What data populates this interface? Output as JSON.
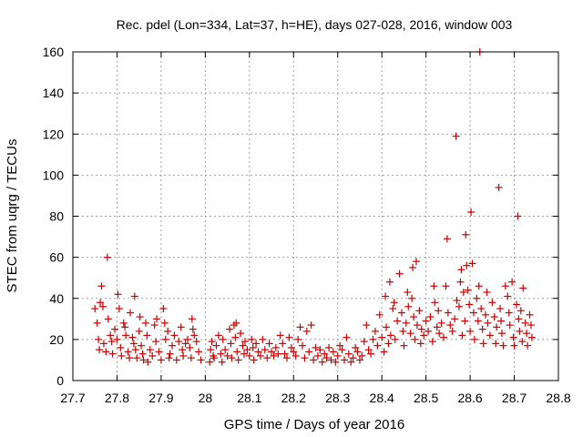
{
  "chart_data": {
    "type": "scatter",
    "title": "Rec. pdel (Lon=334, Lat=37, h=HE), days 027-028, 2016, window 003",
    "xlabel": "GPS time / Days of year 2016",
    "ylabel": "STEC from uqrg / TECUs",
    "xlim": [
      27.7,
      28.8
    ],
    "ylim": [
      0,
      160
    ],
    "xticks": [
      27.7,
      27.8,
      27.9,
      28.0,
      28.1,
      28.2,
      28.3,
      28.4,
      28.5,
      28.6,
      28.7,
      28.8
    ],
    "xtick_labels": [
      "27.7",
      "27.8",
      "27.9",
      "28",
      "28.1",
      "28.2",
      "28.3",
      "28.4",
      "28.5",
      "28.6",
      "28.7",
      "28.8"
    ],
    "yticks": [
      0,
      20,
      40,
      60,
      80,
      100,
      120,
      140,
      160
    ],
    "ytick_labels": [
      "0",
      "20",
      "40",
      "60",
      "80",
      "100",
      "120",
      "140",
      "160"
    ],
    "grid": true,
    "marker": "plus",
    "color": "#cc0000",
    "series": [
      {
        "name": "STEC",
        "points": [
          [
            27.75,
            35
          ],
          [
            27.755,
            28
          ],
          [
            27.758,
            20
          ],
          [
            27.76,
            15
          ],
          [
            27.762,
            38
          ],
          [
            27.765,
            46
          ],
          [
            27.768,
            36
          ],
          [
            27.77,
            18
          ],
          [
            27.775,
            14
          ],
          [
            27.778,
            60
          ],
          [
            27.78,
            30
          ],
          [
            27.785,
            22
          ],
          [
            27.788,
            19
          ],
          [
            27.79,
            13
          ],
          [
            27.795,
            25
          ],
          [
            27.8,
            20
          ],
          [
            27.802,
            42
          ],
          [
            27.805,
            35
          ],
          [
            27.808,
            16
          ],
          [
            27.81,
            12
          ],
          [
            27.815,
            28
          ],
          [
            27.818,
            26
          ],
          [
            27.82,
            22
          ],
          [
            27.825,
            14
          ],
          [
            27.828,
            11
          ],
          [
            27.83,
            33
          ],
          [
            27.835,
            21
          ],
          [
            27.838,
            18
          ],
          [
            27.84,
            41
          ],
          [
            27.842,
            15
          ],
          [
            27.845,
            11
          ],
          [
            27.85,
            24
          ],
          [
            27.852,
            31
          ],
          [
            27.855,
            17
          ],
          [
            27.858,
            13
          ],
          [
            27.86,
            10
          ],
          [
            27.865,
            28
          ],
          [
            27.868,
            22
          ],
          [
            27.87,
            9
          ],
          [
            27.875,
            15
          ],
          [
            27.88,
            12
          ],
          [
            27.885,
            27
          ],
          [
            27.888,
            19
          ],
          [
            27.89,
            30
          ],
          [
            27.895,
            14
          ],
          [
            27.9,
            10
          ],
          [
            27.905,
            35
          ],
          [
            27.908,
            28
          ],
          [
            27.91,
            20
          ],
          [
            27.915,
            24
          ],
          [
            27.918,
            11
          ],
          [
            27.92,
            13
          ],
          [
            27.925,
            17
          ],
          [
            27.93,
            22
          ],
          [
            27.935,
            10
          ],
          [
            27.94,
            19
          ],
          [
            27.945,
            26
          ],
          [
            27.948,
            15
          ],
          [
            27.95,
            12
          ],
          [
            27.955,
            18
          ],
          [
            27.96,
            20
          ],
          [
            27.965,
            16
          ],
          [
            27.968,
            11
          ],
          [
            27.97,
            30
          ],
          [
            27.972,
            25
          ],
          [
            27.975,
            22
          ],
          [
            27.98,
            19
          ],
          [
            27.985,
            14
          ],
          [
            27.99,
            10
          ],
          [
            28.01,
            9
          ],
          [
            28.012,
            15
          ],
          [
            28.015,
            19
          ],
          [
            28.018,
            12
          ],
          [
            28.02,
            11
          ],
          [
            28.025,
            17
          ],
          [
            28.03,
            22
          ],
          [
            28.035,
            13
          ],
          [
            28.038,
            9
          ],
          [
            28.04,
            20
          ],
          [
            28.045,
            15
          ],
          [
            28.05,
            12
          ],
          [
            28.055,
            25
          ],
          [
            28.058,
            18
          ],
          [
            28.06,
            11
          ],
          [
            28.065,
            27
          ],
          [
            28.068,
            21
          ],
          [
            28.07,
            28
          ],
          [
            28.072,
            14
          ],
          [
            28.075,
            10
          ],
          [
            28.08,
            23
          ],
          [
            28.085,
            17
          ],
          [
            28.088,
            13
          ],
          [
            28.09,
            19
          ],
          [
            28.095,
            15
          ],
          [
            28.1,
            12
          ],
          [
            28.105,
            20
          ],
          [
            28.108,
            16
          ],
          [
            28.11,
            10
          ],
          [
            28.115,
            18
          ],
          [
            28.12,
            14
          ],
          [
            28.125,
            12
          ],
          [
            28.13,
            20
          ],
          [
            28.135,
            15
          ],
          [
            28.14,
            11
          ],
          [
            28.145,
            18
          ],
          [
            28.15,
            14
          ],
          [
            28.155,
            12
          ],
          [
            28.16,
            16
          ],
          [
            28.165,
            13
          ],
          [
            28.17,
            22
          ],
          [
            28.175,
            18
          ],
          [
            28.18,
            13
          ],
          [
            28.185,
            11
          ],
          [
            28.19,
            21
          ],
          [
            28.195,
            16
          ],
          [
            28.2,
            14
          ],
          [
            28.205,
            12
          ],
          [
            28.21,
            20
          ],
          [
            28.215,
            26
          ],
          [
            28.22,
            17
          ],
          [
            28.225,
            11
          ],
          [
            28.23,
            24
          ],
          [
            28.235,
            14
          ],
          [
            28.24,
            27
          ],
          [
            28.245,
            10
          ],
          [
            28.25,
            16
          ],
          [
            28.255,
            12
          ],
          [
            28.26,
            15
          ],
          [
            28.265,
            9
          ],
          [
            28.27,
            13
          ],
          [
            28.275,
            11
          ],
          [
            28.28,
            16
          ],
          [
            28.285,
            10
          ],
          [
            28.29,
            14
          ],
          [
            28.295,
            9
          ],
          [
            28.3,
            12
          ],
          [
            28.305,
            17
          ],
          [
            28.31,
            15
          ],
          [
            28.315,
            10
          ],
          [
            28.32,
            21
          ],
          [
            28.325,
            13
          ],
          [
            28.33,
            9
          ],
          [
            28.335,
            11
          ],
          [
            28.34,
            16
          ],
          [
            28.345,
            14
          ],
          [
            28.35,
            10
          ],
          [
            28.355,
            12
          ],
          [
            28.36,
            19
          ],
          [
            28.365,
            27
          ],
          [
            28.37,
            15
          ],
          [
            28.375,
            13
          ],
          [
            28.38,
            20
          ],
          [
            28.385,
            24
          ],
          [
            28.39,
            17
          ],
          [
            28.395,
            32
          ],
          [
            28.4,
            21
          ],
          [
            28.405,
            14
          ],
          [
            28.408,
            41
          ],
          [
            28.41,
            26
          ],
          [
            28.415,
            18
          ],
          [
            28.418,
            48
          ],
          [
            28.42,
            22
          ],
          [
            28.425,
            35
          ],
          [
            28.428,
            38
          ],
          [
            28.43,
            20
          ],
          [
            28.435,
            29
          ],
          [
            28.44,
            52
          ],
          [
            28.445,
            33
          ],
          [
            28.448,
            24
          ],
          [
            28.45,
            17
          ],
          [
            28.455,
            28
          ],
          [
            28.458,
            43
          ],
          [
            28.46,
            36
          ],
          [
            28.465,
            23
          ],
          [
            28.468,
            40
          ],
          [
            28.47,
            55
          ],
          [
            28.472,
            31
          ],
          [
            28.475,
            20
          ],
          [
            28.478,
            58
          ],
          [
            28.48,
            27
          ],
          [
            28.485,
            34
          ],
          [
            28.488,
            18
          ],
          [
            28.49,
            25
          ],
          [
            28.495,
            22
          ],
          [
            28.5,
            29
          ],
          [
            28.505,
            24
          ],
          [
            28.51,
            31
          ],
          [
            28.515,
            19
          ],
          [
            28.518,
            46
          ],
          [
            28.52,
            38
          ],
          [
            28.525,
            26
          ],
          [
            28.528,
            34
          ],
          [
            28.53,
            23
          ],
          [
            28.535,
            28
          ],
          [
            28.54,
            21
          ],
          [
            28.545,
            46
          ],
          [
            28.548,
            69
          ],
          [
            28.55,
            33
          ],
          [
            28.555,
            27
          ],
          [
            28.56,
            24
          ],
          [
            28.565,
            30
          ],
          [
            28.568,
            119
          ],
          [
            28.57,
            39
          ],
          [
            28.575,
            36
          ],
          [
            28.578,
            48
          ],
          [
            28.58,
            54
          ],
          [
            28.582,
            22
          ],
          [
            28.585,
            43
          ],
          [
            28.588,
            29
          ],
          [
            28.59,
            71
          ],
          [
            28.592,
            56
          ],
          [
            28.595,
            44
          ],
          [
            28.598,
            37
          ],
          [
            28.6,
            24
          ],
          [
            28.602,
            82
          ],
          [
            28.605,
            57
          ],
          [
            28.608,
            33
          ],
          [
            28.61,
            20
          ],
          [
            28.615,
            40
          ],
          [
            28.618,
            29
          ],
          [
            28.62,
            46
          ],
          [
            28.622,
            160
          ],
          [
            28.625,
            35
          ],
          [
            28.628,
            25
          ],
          [
            28.63,
            18
          ],
          [
            28.635,
            32
          ],
          [
            28.638,
            43
          ],
          [
            28.64,
            28
          ],
          [
            28.645,
            22
          ],
          [
            28.65,
            38
          ],
          [
            28.655,
            31
          ],
          [
            28.658,
            18
          ],
          [
            28.66,
            26
          ],
          [
            28.665,
            94
          ],
          [
            28.668,
            35
          ],
          [
            28.67,
            29
          ],
          [
            28.672,
            23
          ],
          [
            28.675,
            17
          ],
          [
            28.68,
            46
          ],
          [
            28.685,
            41
          ],
          [
            28.688,
            33
          ],
          [
            28.69,
            27
          ],
          [
            28.695,
            48
          ],
          [
            28.698,
            21
          ],
          [
            28.7,
            17
          ],
          [
            28.705,
            37
          ],
          [
            28.708,
            80
          ],
          [
            28.71,
            30
          ],
          [
            28.712,
            24
          ],
          [
            28.715,
            34
          ],
          [
            28.718,
            19
          ],
          [
            28.72,
            45
          ],
          [
            28.725,
            28
          ],
          [
            28.728,
            23
          ],
          [
            28.73,
            17
          ],
          [
            28.735,
            32
          ],
          [
            28.738,
            27
          ],
          [
            28.74,
            21
          ]
        ]
      }
    ]
  }
}
